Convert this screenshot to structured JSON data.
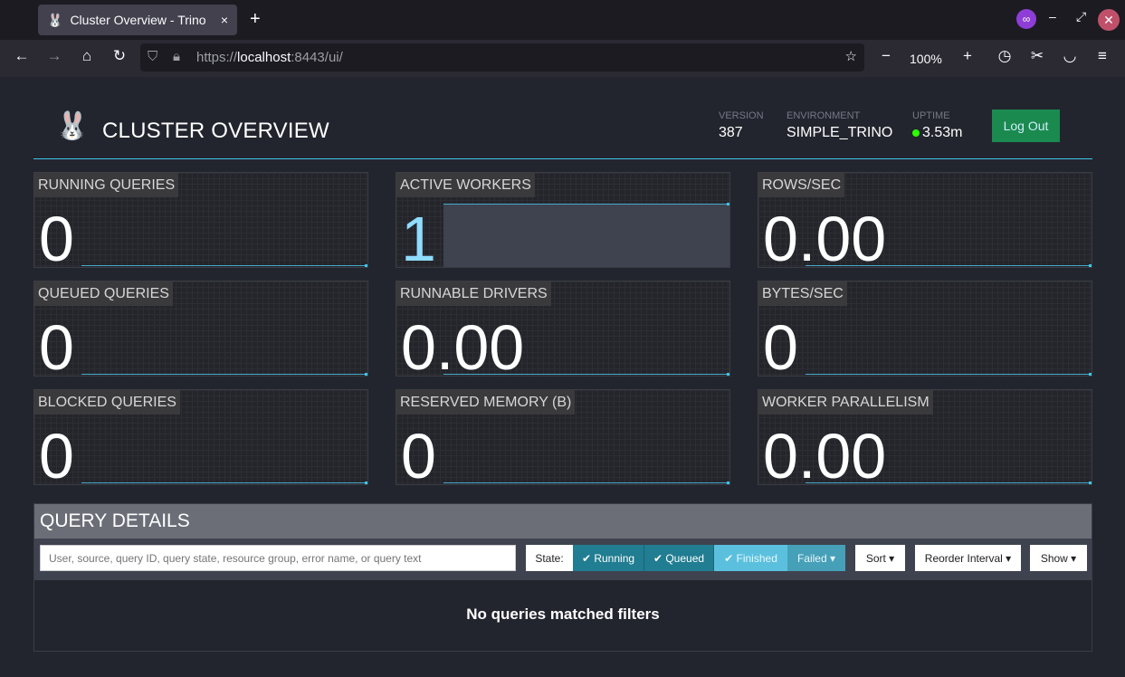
{
  "browser": {
    "tab_title": "Cluster Overview - Trino",
    "url_prefix": "https://",
    "url_host": "localhost",
    "url_rest": ":8443/ui/",
    "zoom": "100%"
  },
  "header": {
    "title": "CLUSTER OVERVIEW",
    "version_label": "VERSION",
    "version": "387",
    "environment_label": "ENVIRONMENT",
    "environment": "SIMPLE_TRINO",
    "uptime_label": "UPTIME",
    "uptime": "3.53m",
    "logout": "Log Out",
    "status_color": "#2bff00"
  },
  "metrics": [
    {
      "label": "RUNNING QUERIES",
      "value": "0"
    },
    {
      "label": "ACTIVE WORKERS",
      "value": "1"
    },
    {
      "label": "ROWS/SEC",
      "value": "0.00"
    },
    {
      "label": "QUEUED QUERIES",
      "value": "0"
    },
    {
      "label": "RUNNABLE DRIVERS",
      "value": "0.00"
    },
    {
      "label": "BYTES/SEC",
      "value": "0"
    },
    {
      "label": "BLOCKED QUERIES",
      "value": "0"
    },
    {
      "label": "RESERVED MEMORY (B)",
      "value": "0"
    },
    {
      "label": "WORKER PARALLELISM",
      "value": "0.00"
    }
  ],
  "query_details": {
    "title": "QUERY DETAILS",
    "search_placeholder": "User, source, query ID, query state, resource group, error name, or query text",
    "state_label": "State:",
    "running": "✔ Running",
    "queued": "✔ Queued",
    "finished": "✔ Finished",
    "failed": "Failed ▾",
    "sort": "Sort ▾",
    "reorder": "Reorder Interval ▾",
    "show": "Show ▾",
    "empty": "No queries matched filters"
  }
}
